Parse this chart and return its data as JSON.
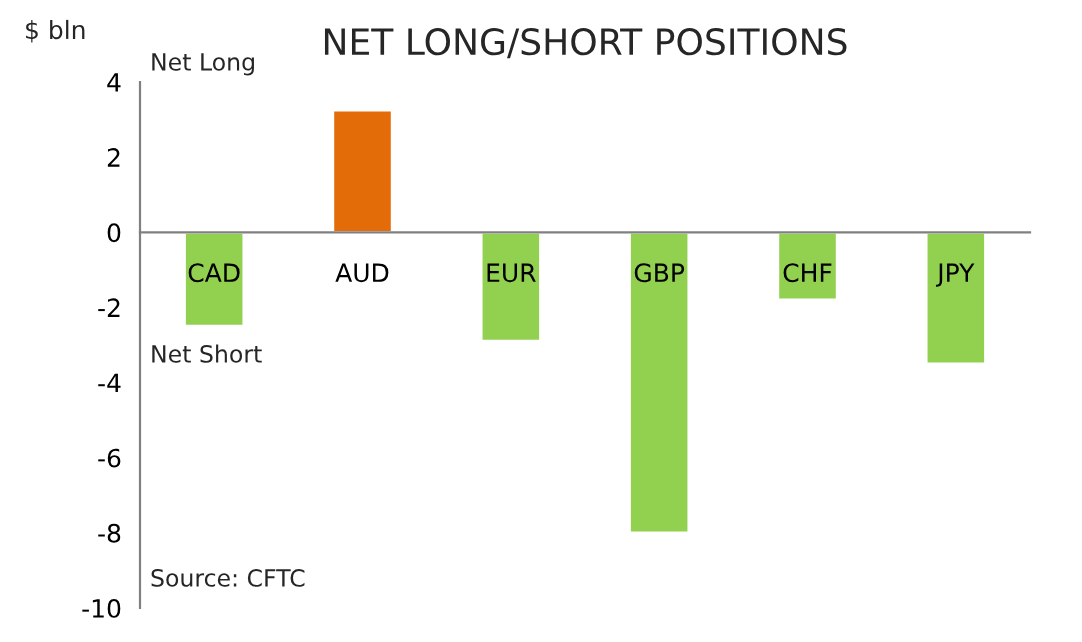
{
  "chart_data": {
    "type": "bar",
    "title": "NET LONG/SHORT POSITIONS",
    "ylabel": "$ bln",
    "categories": [
      "CAD",
      "AUD",
      "EUR",
      "GBP",
      "CHF",
      "JPY"
    ],
    "values": [
      -2.5,
      3.25,
      -2.9,
      -8.0,
      -1.8,
      -3.5
    ],
    "colors": [
      "#92d050",
      "#e36c09",
      "#92d050",
      "#92d050",
      "#92d050",
      "#92d050"
    ],
    "ylim": [
      -10,
      4
    ],
    "yticks": [
      -10,
      -8,
      -6,
      -4,
      -2,
      0,
      2,
      4
    ],
    "grid": false,
    "legend": false,
    "annotations": [
      "Net Long",
      "Net Short",
      "Source: CFTC"
    ]
  }
}
